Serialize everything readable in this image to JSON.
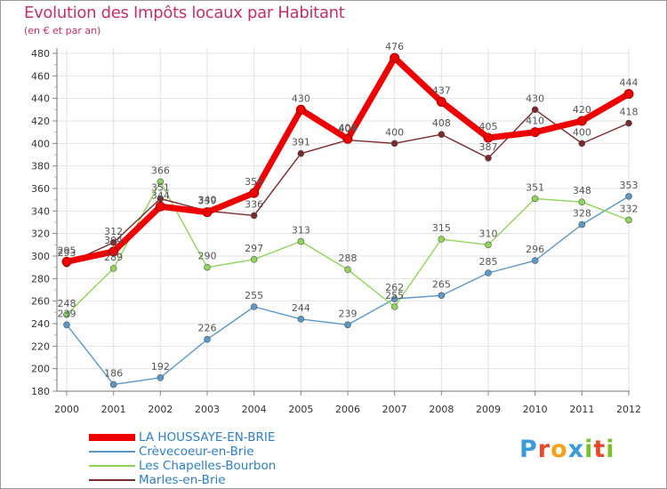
{
  "title": "Evolution des Impôts locaux par Habitant",
  "subtitle": "(en € et par an)",
  "logo": {
    "text": "Proxiti",
    "colors": [
      "#3b9ad9",
      "#e84a2b",
      "#f3a21c",
      "#3b9ad9",
      "#7bbf2e",
      "#e84a2b",
      "#7bbf2e"
    ]
  },
  "chart_data": {
    "type": "line",
    "title": "Evolution des Impôts locaux par Habitant",
    "subtitle": "(en € et par an)",
    "xlabel": "",
    "ylabel": "",
    "x": [
      "2000",
      "2001",
      "2002",
      "2003",
      "2004",
      "2005",
      "2006",
      "2007",
      "2008",
      "2009",
      "2010",
      "2011",
      "2012"
    ],
    "ylim": [
      180,
      480
    ],
    "yticks": [
      180,
      200,
      220,
      240,
      260,
      280,
      300,
      320,
      340,
      360,
      380,
      400,
      420,
      440,
      460,
      480
    ],
    "grid": true,
    "legend_position": "bottom-left",
    "series": [
      {
        "name": "LA HOUSSAYE-EN-BRIE",
        "color": "#ee0000",
        "values": [
          295,
          304,
          344,
          339,
          356,
          430,
          404,
          476,
          437,
          405,
          410,
          420,
          444
        ]
      },
      {
        "name": "Crèvecoeur-en-Brie",
        "color": "#5b98c8",
        "values": [
          239,
          186,
          192,
          226,
          255,
          244,
          239,
          262,
          265,
          285,
          296,
          328,
          353
        ]
      },
      {
        "name": "Les Chapelles-Bourbon",
        "color": "#8fd55a",
        "values": [
          248,
          289,
          366,
          290,
          297,
          313,
          288,
          255,
          315,
          310,
          351,
          348,
          332
        ]
      },
      {
        "name": "Marles-en-Brie",
        "color": "#7a2a2a",
        "values": [
          293,
          312,
          351,
          340,
          336,
          391,
          403,
          400,
          408,
          387,
          430,
          400,
          418
        ]
      }
    ]
  }
}
